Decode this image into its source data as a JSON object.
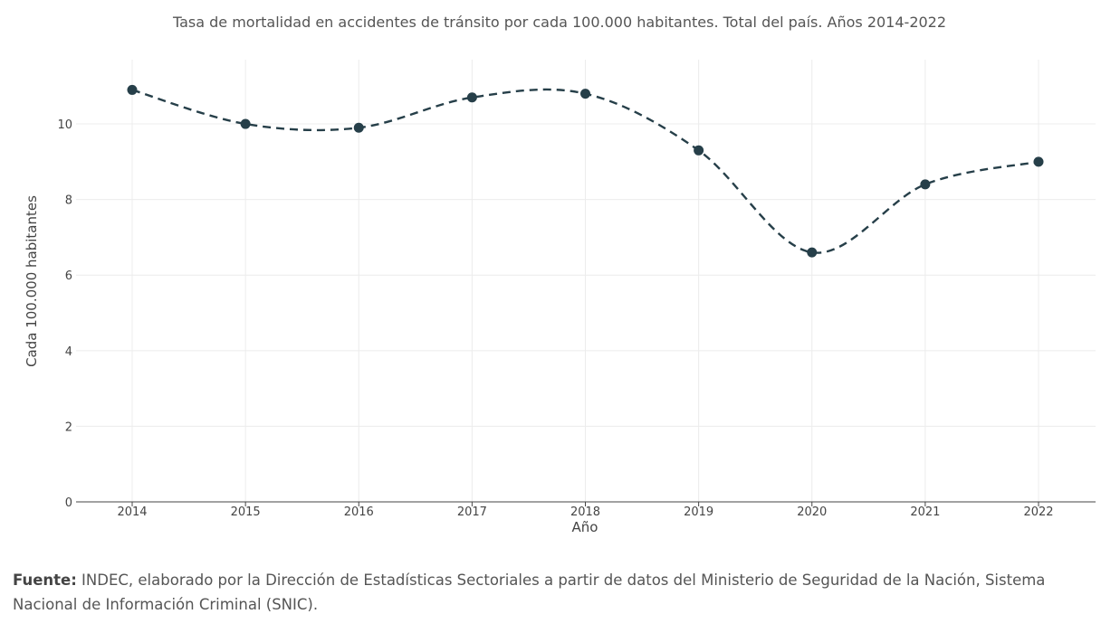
{
  "chart_data": {
    "type": "line",
    "title": "Tasa de mortalidad en accidentes de tránsito por cada 100.000 habitantes. Total del país. Años 2014-2022",
    "xlabel": "Año",
    "ylabel": "Cada 100.000 habitantes",
    "x": [
      "2014",
      "2015",
      "2016",
      "2017",
      "2018",
      "2019",
      "2020",
      "2021",
      "2022"
    ],
    "series": [
      {
        "values": [
          10.9,
          10.0,
          9.9,
          10.7,
          10.8,
          9.3,
          6.6,
          8.4,
          9.0
        ]
      }
    ],
    "ylim": [
      0,
      11.7
    ],
    "yticks": [
      "0",
      "2",
      "4",
      "6",
      "8",
      "10"
    ],
    "grid": true,
    "line_style": "dashed-smooth",
    "color": "#263f49"
  },
  "source": {
    "label": "Fuente:",
    "text": " INDEC, elaborado por la Dirección de Estadísticas Sectoriales a partir de datos del Ministerio de Seguridad de la Nación, Sistema Nacional de Información Criminal (SNIC)."
  }
}
